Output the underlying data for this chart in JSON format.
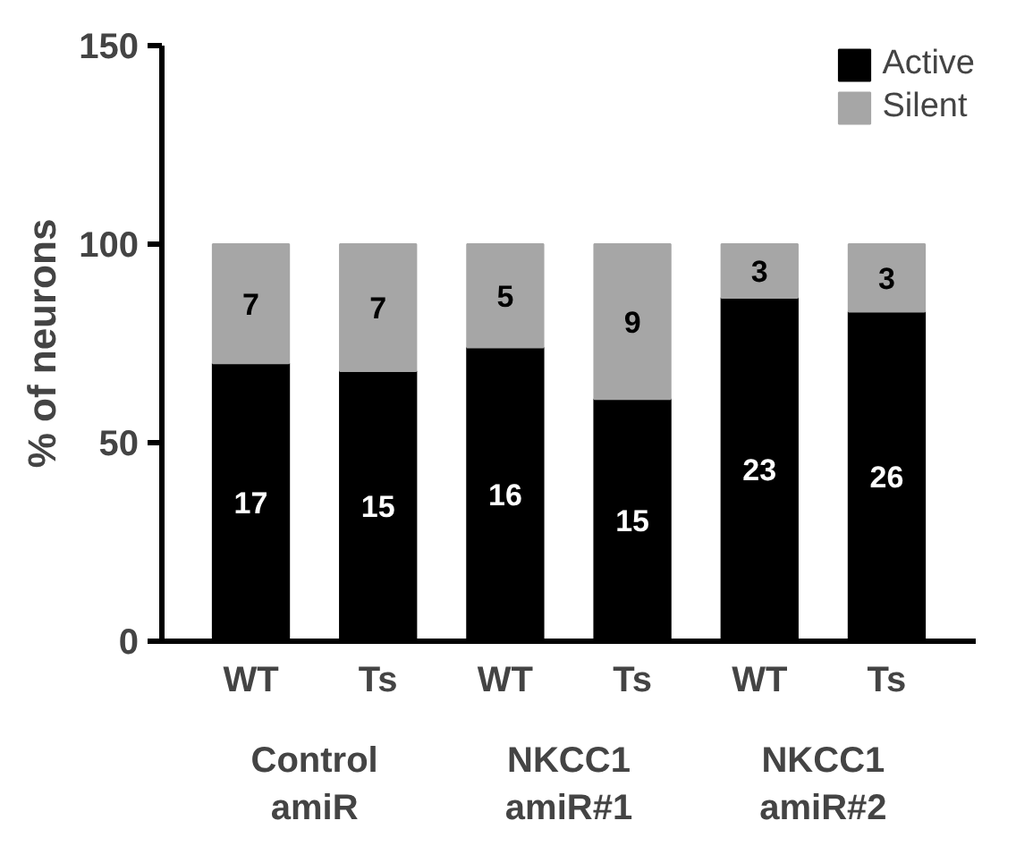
{
  "chart_data": {
    "type": "bar",
    "stacked": true,
    "categories": [
      "WT",
      "Ts",
      "WT",
      "Ts",
      "WT",
      "Ts"
    ],
    "series": [
      {
        "name": "Active",
        "color": "#000000",
        "values": [
          70,
          68,
          74,
          61,
          86.5,
          83
        ]
      },
      {
        "name": "Silent",
        "color": "#a6a6a6",
        "values": [
          30,
          32,
          26,
          39,
          13.5,
          17
        ]
      }
    ],
    "ylabel": "% of neurons",
    "ylim": [
      0,
      150
    ],
    "yticks": [
      0,
      50,
      100,
      150
    ],
    "grid": false,
    "legend": "top right",
    "annotations": [
      "Control\namiR",
      "NKCC1\namiR#1",
      "NKCC1\namiR#2",
      "17",
      "15",
      "16",
      "15",
      "23",
      "26",
      "7",
      "7",
      "5",
      "9",
      "3",
      "3"
    ]
  }
}
